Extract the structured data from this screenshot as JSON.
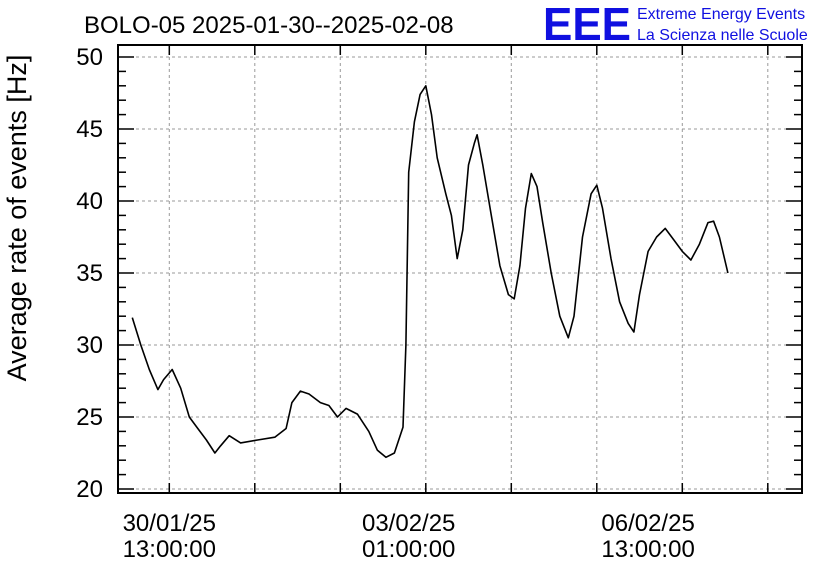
{
  "logo": {
    "mark": "EEE",
    "line1": "Extreme Energy Events",
    "line2": "La Scienza nelle Scuole",
    "color": "#1010e0"
  },
  "chart_data": {
    "type": "line",
    "title": "BOLO-05 2025-01-30--2025-02-08",
    "xlabel": "",
    "ylabel": "Average rate of events [Hz]",
    "ylim": [
      20,
      50
    ],
    "yticks": [
      20,
      25,
      30,
      35,
      40,
      45,
      50
    ],
    "xlim": [
      "2025-01-29 19:00",
      "2025-02-08 19:00"
    ],
    "xtick_labels": [
      {
        "x": "2025-01-30 13:00",
        "date": "30/01/25",
        "time": "13:00:00"
      },
      {
        "x": "2025-02-03 01:00",
        "date": "03/02/25",
        "time": "01:00:00"
      },
      {
        "x": "2025-02-06 13:00",
        "date": "06/02/25",
        "time": "13:00:00"
      }
    ],
    "grid": true,
    "series": [
      {
        "color": "#000000",
        "points": [
          [
            "2025-01-30 00:00",
            31.9
          ],
          [
            "2025-01-30 03:00",
            30.0
          ],
          [
            "2025-01-30 06:00",
            28.3
          ],
          [
            "2025-01-30 09:00",
            26.9
          ],
          [
            "2025-01-30 11:00",
            27.6
          ],
          [
            "2025-01-30 14:00",
            28.3
          ],
          [
            "2025-01-30 17:00",
            27.0
          ],
          [
            "2025-01-30 20:00",
            25.0
          ],
          [
            "2025-01-30 23:00",
            24.2
          ],
          [
            "2025-01-31 02:00",
            23.4
          ],
          [
            "2025-01-31 05:00",
            22.5
          ],
          [
            "2025-01-31 07:00",
            23.0
          ],
          [
            "2025-01-31 10:00",
            23.7
          ],
          [
            "2025-01-31 14:00",
            23.2
          ],
          [
            "2025-01-31 20:00",
            23.4
          ],
          [
            "2025-02-01 02:00",
            23.6
          ],
          [
            "2025-02-01 06:00",
            24.2
          ],
          [
            "2025-02-01 08:00",
            26.0
          ],
          [
            "2025-02-01 11:00",
            26.8
          ],
          [
            "2025-02-01 14:00",
            26.6
          ],
          [
            "2025-02-01 18:00",
            26.0
          ],
          [
            "2025-02-01 21:00",
            25.8
          ],
          [
            "2025-02-02 00:00",
            25.0
          ],
          [
            "2025-02-02 03:00",
            25.6
          ],
          [
            "2025-02-02 07:00",
            25.2
          ],
          [
            "2025-02-02 11:00",
            24.0
          ],
          [
            "2025-02-02 14:00",
            22.7
          ],
          [
            "2025-02-02 17:00",
            22.2
          ],
          [
            "2025-02-02 20:00",
            22.5
          ],
          [
            "2025-02-02 23:00",
            24.3
          ],
          [
            "2025-02-03 00:00",
            30.0
          ],
          [
            "2025-02-03 01:00",
            42.0
          ],
          [
            "2025-02-03 03:00",
            45.5
          ],
          [
            "2025-02-03 05:00",
            47.4
          ],
          [
            "2025-02-03 07:00",
            48.0
          ],
          [
            "2025-02-03 09:00",
            46.0
          ],
          [
            "2025-02-03 11:00",
            43.0
          ],
          [
            "2025-02-03 14:00",
            40.5
          ],
          [
            "2025-02-03 16:00",
            39.0
          ],
          [
            "2025-02-03 18:00",
            36.0
          ],
          [
            "2025-02-03 20:00",
            38.0
          ],
          [
            "2025-02-03 22:00",
            42.5
          ],
          [
            "2025-02-04 00:00",
            44.0
          ],
          [
            "2025-02-04 01:00",
            44.6
          ],
          [
            "2025-02-04 03:00",
            42.5
          ],
          [
            "2025-02-04 06:00",
            39.0
          ],
          [
            "2025-02-04 09:00",
            35.5
          ],
          [
            "2025-02-04 12:00",
            33.5
          ],
          [
            "2025-02-04 14:00",
            33.2
          ],
          [
            "2025-02-04 16:00",
            35.5
          ],
          [
            "2025-02-04 18:00",
            39.5
          ],
          [
            "2025-02-04 20:00",
            41.9
          ],
          [
            "2025-02-04 22:00",
            41.0
          ],
          [
            "2025-02-05 00:00",
            38.5
          ],
          [
            "2025-02-05 03:00",
            35.0
          ],
          [
            "2025-02-05 06:00",
            32.0
          ],
          [
            "2025-02-05 09:00",
            30.5
          ],
          [
            "2025-02-05 11:00",
            32.0
          ],
          [
            "2025-02-05 14:00",
            37.5
          ],
          [
            "2025-02-05 17:00",
            40.5
          ],
          [
            "2025-02-05 19:00",
            41.1
          ],
          [
            "2025-02-05 21:00",
            39.5
          ],
          [
            "2025-02-06 00:00",
            36.0
          ],
          [
            "2025-02-06 03:00",
            33.0
          ],
          [
            "2025-02-06 06:00",
            31.5
          ],
          [
            "2025-02-06 08:00",
            30.9
          ],
          [
            "2025-02-06 10:00",
            33.5
          ],
          [
            "2025-02-06 13:00",
            36.5
          ],
          [
            "2025-02-06 16:00",
            37.5
          ],
          [
            "2025-02-06 19:00",
            38.1
          ],
          [
            "2025-02-06 22:00",
            37.3
          ],
          [
            "2025-02-07 01:00",
            36.5
          ],
          [
            "2025-02-07 04:00",
            35.9
          ],
          [
            "2025-02-07 07:00",
            37.0
          ],
          [
            "2025-02-07 10:00",
            38.5
          ],
          [
            "2025-02-07 12:00",
            38.6
          ],
          [
            "2025-02-07 14:00",
            37.5
          ],
          [
            "2025-02-07 17:00",
            35.0
          ]
        ]
      }
    ]
  }
}
